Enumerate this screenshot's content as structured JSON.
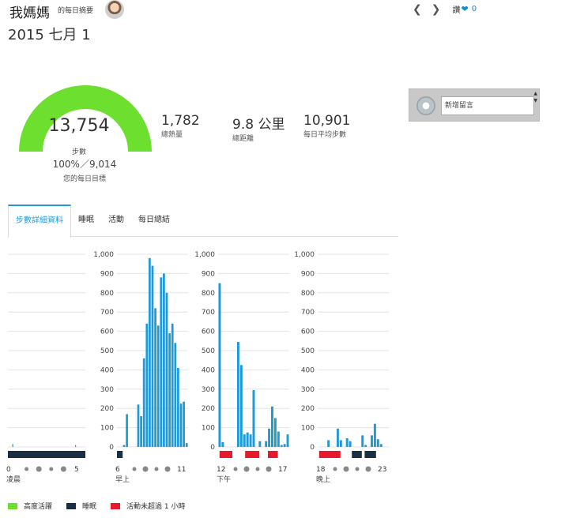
{
  "header": {
    "owner_name": "我媽媽",
    "owner_sub": "的每日摘要",
    "date": "2015 七月 1",
    "like_label": "讚",
    "like_count": "0",
    "prev_icon": "chevron-left-icon",
    "next_icon": "chevron-right-icon",
    "like_icon": "heart-icon"
  },
  "summary": {
    "steps": "13,754",
    "steps_unit": "步數",
    "goal_text": "100%／9,014",
    "goal_label": "您的每日目標",
    "goal_fraction": 1.0,
    "gauge_color": "#6cdf2f",
    "stats": [
      {
        "value": "1,782",
        "label": "總熱量"
      },
      {
        "value": "9.8 公里",
        "label": "總距離"
      },
      {
        "value": "10,901",
        "label": "每日平均步數"
      }
    ]
  },
  "comment": {
    "placeholder": "新增留言"
  },
  "tabs": [
    {
      "label": "步數詳細資料",
      "active": true
    },
    {
      "label": "睡眠",
      "active": false
    },
    {
      "label": "活動",
      "active": false
    },
    {
      "label": "每日總結",
      "active": false
    }
  ],
  "chart_data": [
    {
      "type": "bar",
      "title": "",
      "ylim": [
        0,
        1000
      ],
      "yticks": [],
      "period_label": "凌晨",
      "x_start_label": "0",
      "x_end_label": "5",
      "values": [
        0,
        0,
        0,
        0,
        0,
        0,
        0,
        0,
        0,
        0,
        15,
        0,
        0,
        0,
        0,
        0,
        0,
        0,
        0,
        0,
        0,
        0,
        0,
        0,
        0,
        0,
        0,
        0,
        0,
        0,
        0,
        0,
        0,
        0,
        0,
        0,
        0,
        0,
        0,
        0,
        0,
        0,
        0,
        0,
        0,
        0,
        0,
        0,
        0,
        0,
        0,
        0,
        0,
        0,
        0,
        0,
        0,
        0,
        0,
        0,
        0,
        0,
        0,
        0,
        0,
        0,
        0,
        0,
        0,
        0,
        0,
        0,
        0,
        0,
        0,
        0,
        0,
        0,
        0,
        0,
        0,
        0,
        0,
        0,
        0,
        0,
        0,
        0,
        0,
        0,
        0,
        0,
        0,
        0,
        0,
        0,
        0,
        0,
        0,
        0,
        0,
        0,
        0,
        0,
        0,
        0,
        0,
        0,
        0,
        0,
        0,
        0,
        0,
        0,
        0,
        0,
        0,
        0,
        0,
        0,
        0,
        0,
        0,
        0,
        0,
        0,
        0,
        0,
        0,
        0,
        0,
        0,
        0,
        0,
        0,
        0,
        0,
        0,
        0,
        0,
        0,
        0,
        0,
        0,
        0,
        0,
        0,
        0,
        0,
        0,
        0,
        0,
        0,
        0,
        0,
        0,
        10,
        0,
        0,
        0,
        0,
        0,
        0,
        0,
        0,
        0,
        0,
        0,
        0,
        0,
        0,
        0,
        0,
        0,
        0,
        0,
        0,
        0,
        0,
        0
      ],
      "status": [
        {
          "type": "sleep",
          "from": 0,
          "to": 1
        }
      ]
    },
    {
      "type": "bar",
      "ylim": [
        0,
        1000
      ],
      "yticks": [
        "1,000",
        "900",
        "800",
        "700",
        "600",
        "500",
        "400",
        "300",
        "200",
        "100",
        "0"
      ],
      "period_label": "早上",
      "x_start_label": "6",
      "x_end_label": "11",
      "values": [
        0,
        0,
        10,
        170,
        0,
        0,
        0,
        220,
        160,
        460,
        640,
        980,
        940,
        720,
        630,
        880,
        900,
        800,
        590,
        640,
        540,
        410,
        225,
        235,
        20
      ],
      "status": [
        {
          "type": "sleep",
          "from": 0,
          "to": 0.08
        }
      ]
    },
    {
      "type": "bar",
      "ylim": [
        0,
        1000
      ],
      "yticks": [
        "1,000",
        "900",
        "800",
        "700",
        "600",
        "500",
        "400",
        "300",
        "200",
        "100",
        "0"
      ],
      "period_label": "下午",
      "x_start_label": "12",
      "x_end_label": "17",
      "values": [
        850,
        25,
        0,
        0,
        0,
        0,
        545,
        425,
        65,
        75,
        65,
        295,
        0,
        30,
        0,
        30,
        95,
        210,
        150,
        80,
        10,
        15,
        65
      ],
      "status": [
        {
          "type": "inactive",
          "from": 0.02,
          "to": 0.2
        },
        {
          "type": "inactive",
          "from": 0.38,
          "to": 0.58
        },
        {
          "type": "inactive",
          "from": 0.7,
          "to": 0.84
        }
      ]
    },
    {
      "type": "bar",
      "ylim": [
        0,
        1000
      ],
      "yticks": [
        "1,000",
        "900",
        "800",
        "700",
        "600",
        "500",
        "400",
        "300",
        "200",
        "100",
        "0"
      ],
      "period_label": "晚上",
      "x_start_label": "18",
      "x_end_label": "23",
      "values": [
        0,
        0,
        0,
        35,
        0,
        0,
        95,
        35,
        0,
        45,
        30,
        0,
        0,
        0,
        60,
        10,
        0,
        60,
        120,
        40,
        15,
        0,
        0
      ],
      "status": [
        {
          "type": "inactive",
          "from": 0.02,
          "to": 0.32
        },
        {
          "type": "sleep",
          "from": 0.48,
          "to": 0.62
        },
        {
          "type": "sleep",
          "from": 0.66,
          "to": 0.82
        }
      ]
    }
  ],
  "legend": [
    {
      "label": "高度活躍",
      "color": "#6cdf2f"
    },
    {
      "label": "睡眠",
      "color": "#1a2e44"
    },
    {
      "label": "活動未超過 1 小時",
      "color": "#e8192c"
    }
  ],
  "colors": {
    "bar": "#1f9ad6",
    "sleep": "#1a2e44",
    "inactive": "#e8192c",
    "dot": "#888888"
  }
}
